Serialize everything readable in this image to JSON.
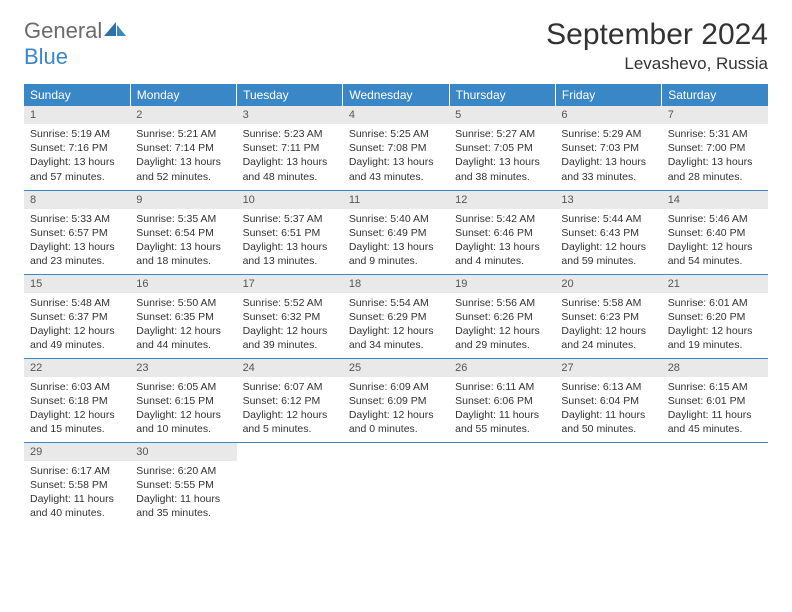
{
  "logo": {
    "general": "General",
    "blue": "Blue"
  },
  "title": "September 2024",
  "location": "Levashevo, Russia",
  "colors": {
    "header_bg": "#3a87c8",
    "header_text": "#ffffff",
    "daynum_bg": "#e9e9e9",
    "row_border": "#3a87c8",
    "body_text": "#333333",
    "logo_gray": "#6b6b6b",
    "logo_blue": "#3a87c8"
  },
  "weekdays": [
    "Sunday",
    "Monday",
    "Tuesday",
    "Wednesday",
    "Thursday",
    "Friday",
    "Saturday"
  ],
  "days": [
    {
      "n": "1",
      "sunrise": "5:19 AM",
      "sunset": "7:16 PM",
      "dl": "13 hours and 57 minutes."
    },
    {
      "n": "2",
      "sunrise": "5:21 AM",
      "sunset": "7:14 PM",
      "dl": "13 hours and 52 minutes."
    },
    {
      "n": "3",
      "sunrise": "5:23 AM",
      "sunset": "7:11 PM",
      "dl": "13 hours and 48 minutes."
    },
    {
      "n": "4",
      "sunrise": "5:25 AM",
      "sunset": "7:08 PM",
      "dl": "13 hours and 43 minutes."
    },
    {
      "n": "5",
      "sunrise": "5:27 AM",
      "sunset": "7:05 PM",
      "dl": "13 hours and 38 minutes."
    },
    {
      "n": "6",
      "sunrise": "5:29 AM",
      "sunset": "7:03 PM",
      "dl": "13 hours and 33 minutes."
    },
    {
      "n": "7",
      "sunrise": "5:31 AM",
      "sunset": "7:00 PM",
      "dl": "13 hours and 28 minutes."
    },
    {
      "n": "8",
      "sunrise": "5:33 AM",
      "sunset": "6:57 PM",
      "dl": "13 hours and 23 minutes."
    },
    {
      "n": "9",
      "sunrise": "5:35 AM",
      "sunset": "6:54 PM",
      "dl": "13 hours and 18 minutes."
    },
    {
      "n": "10",
      "sunrise": "5:37 AM",
      "sunset": "6:51 PM",
      "dl": "13 hours and 13 minutes."
    },
    {
      "n": "11",
      "sunrise": "5:40 AM",
      "sunset": "6:49 PM",
      "dl": "13 hours and 9 minutes."
    },
    {
      "n": "12",
      "sunrise": "5:42 AM",
      "sunset": "6:46 PM",
      "dl": "13 hours and 4 minutes."
    },
    {
      "n": "13",
      "sunrise": "5:44 AM",
      "sunset": "6:43 PM",
      "dl": "12 hours and 59 minutes."
    },
    {
      "n": "14",
      "sunrise": "5:46 AM",
      "sunset": "6:40 PM",
      "dl": "12 hours and 54 minutes."
    },
    {
      "n": "15",
      "sunrise": "5:48 AM",
      "sunset": "6:37 PM",
      "dl": "12 hours and 49 minutes."
    },
    {
      "n": "16",
      "sunrise": "5:50 AM",
      "sunset": "6:35 PM",
      "dl": "12 hours and 44 minutes."
    },
    {
      "n": "17",
      "sunrise": "5:52 AM",
      "sunset": "6:32 PM",
      "dl": "12 hours and 39 minutes."
    },
    {
      "n": "18",
      "sunrise": "5:54 AM",
      "sunset": "6:29 PM",
      "dl": "12 hours and 34 minutes."
    },
    {
      "n": "19",
      "sunrise": "5:56 AM",
      "sunset": "6:26 PM",
      "dl": "12 hours and 29 minutes."
    },
    {
      "n": "20",
      "sunrise": "5:58 AM",
      "sunset": "6:23 PM",
      "dl": "12 hours and 24 minutes."
    },
    {
      "n": "21",
      "sunrise": "6:01 AM",
      "sunset": "6:20 PM",
      "dl": "12 hours and 19 minutes."
    },
    {
      "n": "22",
      "sunrise": "6:03 AM",
      "sunset": "6:18 PM",
      "dl": "12 hours and 15 minutes."
    },
    {
      "n": "23",
      "sunrise": "6:05 AM",
      "sunset": "6:15 PM",
      "dl": "12 hours and 10 minutes."
    },
    {
      "n": "24",
      "sunrise": "6:07 AM",
      "sunset": "6:12 PM",
      "dl": "12 hours and 5 minutes."
    },
    {
      "n": "25",
      "sunrise": "6:09 AM",
      "sunset": "6:09 PM",
      "dl": "12 hours and 0 minutes."
    },
    {
      "n": "26",
      "sunrise": "6:11 AM",
      "sunset": "6:06 PM",
      "dl": "11 hours and 55 minutes."
    },
    {
      "n": "27",
      "sunrise": "6:13 AM",
      "sunset": "6:04 PM",
      "dl": "11 hours and 50 minutes."
    },
    {
      "n": "28",
      "sunrise": "6:15 AM",
      "sunset": "6:01 PM",
      "dl": "11 hours and 45 minutes."
    },
    {
      "n": "29",
      "sunrise": "6:17 AM",
      "sunset": "5:58 PM",
      "dl": "11 hours and 40 minutes."
    },
    {
      "n": "30",
      "sunrise": "6:20 AM",
      "sunset": "5:55 PM",
      "dl": "11 hours and 35 minutes."
    }
  ],
  "labels": {
    "sunrise": "Sunrise:",
    "sunset": "Sunset:",
    "daylight": "Daylight:"
  },
  "layout": {
    "first_weekday_index": 0,
    "total_cells": 35
  }
}
